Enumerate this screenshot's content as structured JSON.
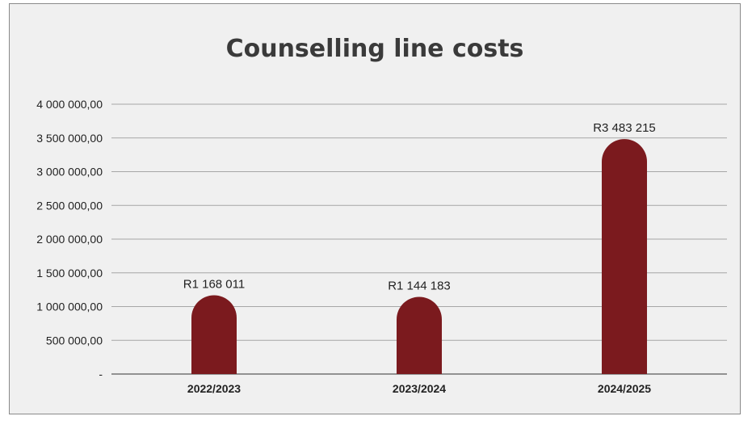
{
  "chart_data": {
    "type": "bar",
    "title": "Counselling line costs",
    "categories": [
      "2022/2023",
      "2023/2024",
      "2024/2025"
    ],
    "values": [
      1168011,
      1144183,
      3483215
    ],
    "data_labels": [
      "R1 168 011",
      "R1 144 183",
      "R3 483 215"
    ],
    "ylim": [
      0,
      4000000
    ],
    "y_ticks": [
      0,
      500000,
      1000000,
      1500000,
      2000000,
      2500000,
      3000000,
      3500000,
      4000000
    ],
    "y_tick_labels": [
      "-",
      "500 000,00",
      "1 000 000,00",
      "1 500 000,00",
      "2 000 000,00",
      "2 500 000,00",
      "3 000 000,00",
      "3 500 000,00",
      "4 000 000,00"
    ],
    "grid": true,
    "legend": "none",
    "bar_color": "#7b1a1e",
    "grid_color": "#a6a6a6",
    "axis_color": "#595959"
  }
}
